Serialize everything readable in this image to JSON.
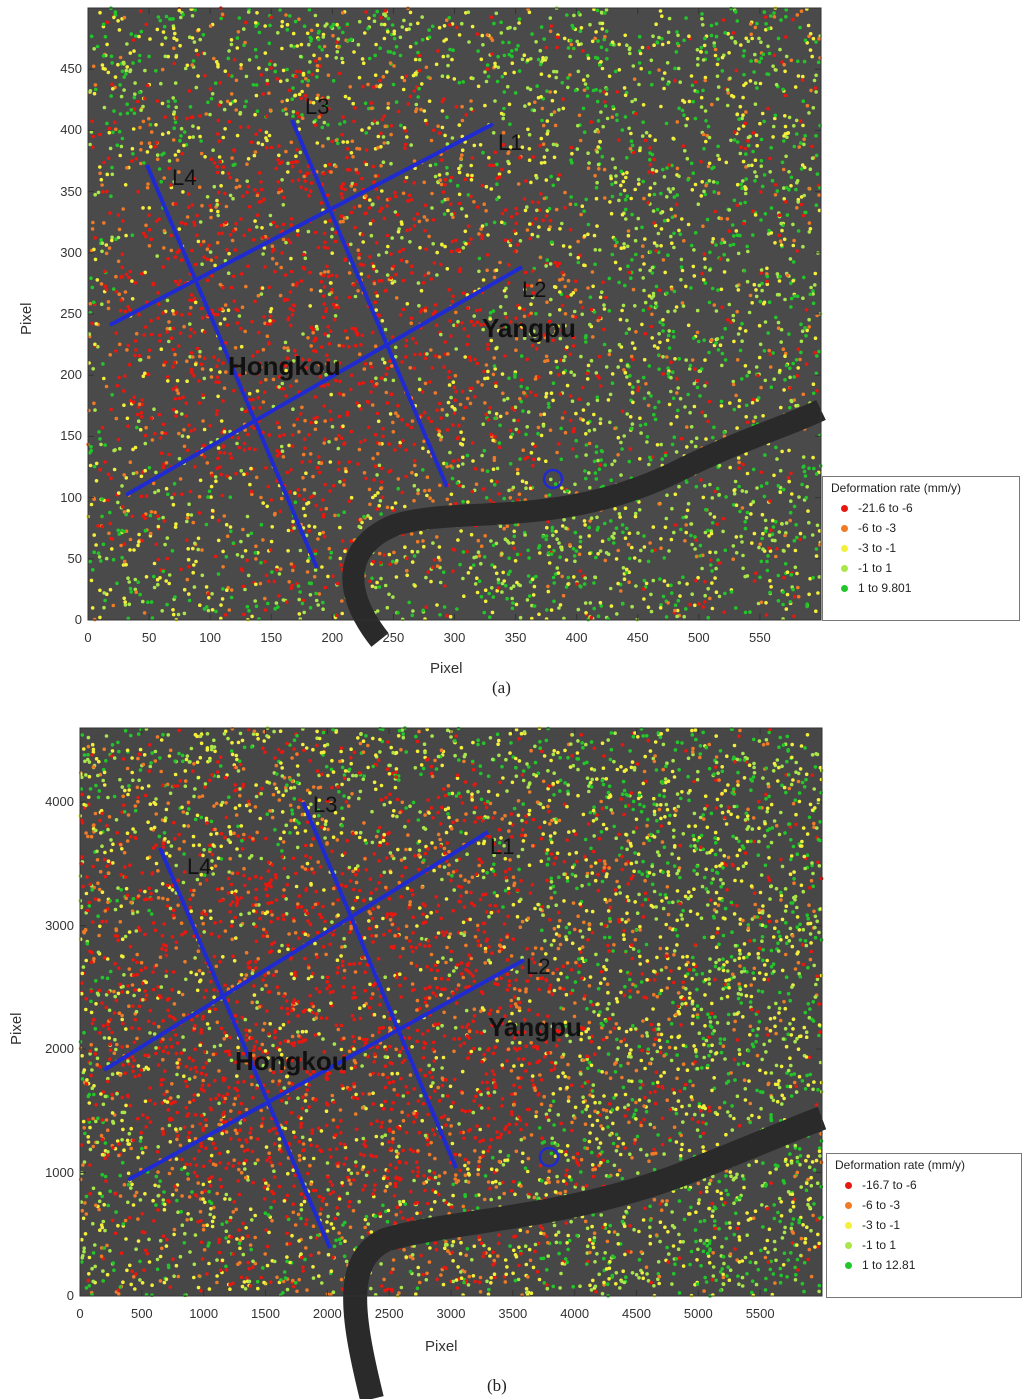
{
  "legend_colors": [
    "#e8170f",
    "#f07a25",
    "#f4f03a",
    "#a8e64a",
    "#23c62a"
  ],
  "panels": {
    "a": {
      "label": "(a)",
      "xlabel": "Pixel",
      "ylabel": "Pixel",
      "xticks": [
        "0",
        "50",
        "100",
        "150",
        "200",
        "250",
        "300",
        "350",
        "400",
        "450",
        "500",
        "550"
      ],
      "yticks": [
        "0",
        "50",
        "100",
        "150",
        "200",
        "250",
        "300",
        "350",
        "400",
        "450"
      ],
      "legend_title": "Deformation rate (mm/y)",
      "legend": [
        "-21.6  to  -6",
        "-6  to  -3",
        "-3  to  -1",
        "-1  to  1",
        "1  to  9.801"
      ],
      "lines": [
        "L1",
        "L2",
        "L3",
        "L4"
      ],
      "districts": [
        "Hongkou",
        "Yangpu"
      ]
    },
    "b": {
      "label": "(b)",
      "xlabel": "Pixel",
      "ylabel": "Pixel",
      "xticks": [
        "0",
        "500",
        "1000",
        "1500",
        "2000",
        "2500",
        "3000",
        "3500",
        "4000",
        "4500",
        "5000",
        "5500"
      ],
      "yticks": [
        "0",
        "1000",
        "2000",
        "3000",
        "4000"
      ],
      "legend_title": "Deformation rate (mm/y)",
      "legend": [
        "-16.7  to  -6",
        "-6  to  -3",
        "-3  to  -1",
        "-1  to  1",
        "1  to  12.81"
      ],
      "lines": [
        "L1",
        "L2",
        "L3",
        "L4"
      ],
      "districts": [
        "Hongkou",
        "Yangpu"
      ]
    }
  }
}
